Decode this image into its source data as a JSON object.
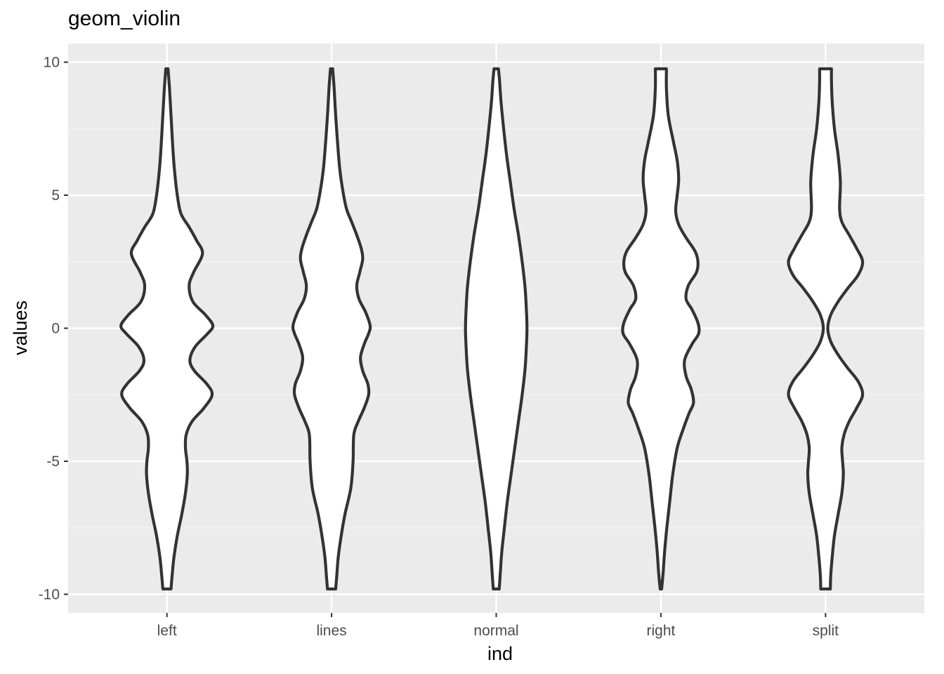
{
  "chart_data": {
    "type": "violin",
    "title": "geom_violin",
    "xlabel": "ind",
    "ylabel": "values",
    "ylim": [
      -10.7,
      10.7
    ],
    "yticks": [
      -10,
      -5,
      0,
      5,
      10
    ],
    "ytick_labels": [
      "-10",
      "-5",
      "0",
      "5",
      "10"
    ],
    "categories": [
      "left",
      "lines",
      "normal",
      "right",
      "split"
    ],
    "grid": true,
    "colors": {
      "panel": "#EBEBEB",
      "grid_major": "#FFFFFF",
      "grid_minor": "#F5F5F5",
      "violin_fill": "#FFFFFF",
      "violin_outline": "#333333",
      "tick_label": "#4D4D4D"
    },
    "violins": [
      {
        "name": "left",
        "profile": [
          [
            -9.8,
            0.055
          ],
          [
            -9.3,
            0.07
          ],
          [
            -8.6,
            0.095
          ],
          [
            -7.8,
            0.14
          ],
          [
            -7,
            0.2
          ],
          [
            -6.2,
            0.25
          ],
          [
            -5.5,
            0.275
          ],
          [
            -5,
            0.27
          ],
          [
            -4.5,
            0.25
          ],
          [
            -4,
            0.26
          ],
          [
            -3.5,
            0.34
          ],
          [
            -3,
            0.5
          ],
          [
            -2.5,
            0.61
          ],
          [
            -2.1,
            0.54
          ],
          [
            -1.6,
            0.37
          ],
          [
            -1.2,
            0.31
          ],
          [
            -0.7,
            0.38
          ],
          [
            -0.2,
            0.55
          ],
          [
            0.1,
            0.62
          ],
          [
            0.5,
            0.52
          ],
          [
            1,
            0.35
          ],
          [
            1.6,
            0.3
          ],
          [
            2.1,
            0.36
          ],
          [
            2.8,
            0.48
          ],
          [
            3.3,
            0.4
          ],
          [
            3.8,
            0.3
          ],
          [
            4.3,
            0.19
          ],
          [
            5,
            0.14
          ],
          [
            6,
            0.1
          ],
          [
            7,
            0.075
          ],
          [
            8,
            0.055
          ],
          [
            9,
            0.035
          ],
          [
            9.75,
            0.015
          ]
        ]
      },
      {
        "name": "lines",
        "profile": [
          [
            -9.8,
            0.055
          ],
          [
            -9.3,
            0.07
          ],
          [
            -8.6,
            0.09
          ],
          [
            -7.8,
            0.13
          ],
          [
            -7,
            0.18
          ],
          [
            -6,
            0.26
          ],
          [
            -5,
            0.29
          ],
          [
            -4,
            0.3
          ],
          [
            -3.5,
            0.36
          ],
          [
            -3,
            0.44
          ],
          [
            -2.5,
            0.5
          ],
          [
            -2.1,
            0.49
          ],
          [
            -1.6,
            0.42
          ],
          [
            -1.1,
            0.39
          ],
          [
            -0.6,
            0.44
          ],
          [
            -0.2,
            0.5
          ],
          [
            0.1,
            0.52
          ],
          [
            0.6,
            0.46
          ],
          [
            1.1,
            0.37
          ],
          [
            1.6,
            0.34
          ],
          [
            2.1,
            0.38
          ],
          [
            2.6,
            0.42
          ],
          [
            3,
            0.4
          ],
          [
            3.5,
            0.34
          ],
          [
            4,
            0.27
          ],
          [
            4.5,
            0.2
          ],
          [
            5.2,
            0.15
          ],
          [
            6,
            0.11
          ],
          [
            7,
            0.08
          ],
          [
            8,
            0.055
          ],
          [
            9,
            0.035
          ],
          [
            9.75,
            0.015
          ]
        ]
      },
      {
        "name": "normal",
        "profile": [
          [
            -9.8,
            0.04
          ],
          [
            -9.2,
            0.055
          ],
          [
            -8.4,
            0.075
          ],
          [
            -7.5,
            0.11
          ],
          [
            -6.5,
            0.15
          ],
          [
            -5.5,
            0.2
          ],
          [
            -4.5,
            0.25
          ],
          [
            -3.5,
            0.3
          ],
          [
            -2.5,
            0.35
          ],
          [
            -1.5,
            0.39
          ],
          [
            -0.5,
            0.41
          ],
          [
            0,
            0.415
          ],
          [
            0.5,
            0.41
          ],
          [
            1.5,
            0.39
          ],
          [
            2.5,
            0.35
          ],
          [
            3.5,
            0.3
          ],
          [
            4.5,
            0.24
          ],
          [
            5.5,
            0.19
          ],
          [
            6.5,
            0.14
          ],
          [
            7.5,
            0.1
          ],
          [
            8.5,
            0.065
          ],
          [
            9.3,
            0.045
          ],
          [
            9.75,
            0.03
          ]
        ]
      },
      {
        "name": "right",
        "profile": [
          [
            -9.8,
            0.01
          ],
          [
            -9.2,
            0.03
          ],
          [
            -8.4,
            0.05
          ],
          [
            -7.5,
            0.08
          ],
          [
            -6.5,
            0.12
          ],
          [
            -5.5,
            0.16
          ],
          [
            -4.5,
            0.22
          ],
          [
            -3.8,
            0.3
          ],
          [
            -3.2,
            0.38
          ],
          [
            -2.8,
            0.44
          ],
          [
            -2.3,
            0.41
          ],
          [
            -1.8,
            0.34
          ],
          [
            -1.2,
            0.32
          ],
          [
            -0.6,
            0.42
          ],
          [
            -0.2,
            0.51
          ],
          [
            0.2,
            0.5
          ],
          [
            0.7,
            0.42
          ],
          [
            1.1,
            0.34
          ],
          [
            1.6,
            0.37
          ],
          [
            2.1,
            0.48
          ],
          [
            2.5,
            0.5
          ],
          [
            2.9,
            0.46
          ],
          [
            3.4,
            0.34
          ],
          [
            3.9,
            0.24
          ],
          [
            4.4,
            0.2
          ],
          [
            5,
            0.22
          ],
          [
            5.6,
            0.24
          ],
          [
            6.3,
            0.22
          ],
          [
            7,
            0.17
          ],
          [
            8,
            0.1
          ],
          [
            9,
            0.075
          ],
          [
            9.75,
            0.075
          ]
        ]
      },
      {
        "name": "split",
        "profile": [
          [
            -9.8,
            0.065
          ],
          [
            -9.3,
            0.07
          ],
          [
            -8.6,
            0.09
          ],
          [
            -7.8,
            0.12
          ],
          [
            -7,
            0.17
          ],
          [
            -6.2,
            0.22
          ],
          [
            -5.5,
            0.24
          ],
          [
            -5,
            0.23
          ],
          [
            -4.5,
            0.22
          ],
          [
            -4,
            0.25
          ],
          [
            -3.5,
            0.32
          ],
          [
            -3,
            0.42
          ],
          [
            -2.5,
            0.5
          ],
          [
            -2,
            0.44
          ],
          [
            -1.5,
            0.3
          ],
          [
            -1,
            0.17
          ],
          [
            -0.5,
            0.07
          ],
          [
            0,
            0.03
          ],
          [
            0.5,
            0.07
          ],
          [
            1,
            0.17
          ],
          [
            1.5,
            0.3
          ],
          [
            2,
            0.44
          ],
          [
            2.5,
            0.5
          ],
          [
            3,
            0.42
          ],
          [
            3.5,
            0.32
          ],
          [
            4,
            0.22
          ],
          [
            4.5,
            0.19
          ],
          [
            5.5,
            0.2
          ],
          [
            6.5,
            0.17
          ],
          [
            7.5,
            0.12
          ],
          [
            8.5,
            0.09
          ],
          [
            9.3,
            0.08
          ],
          [
            9.75,
            0.08
          ]
        ]
      }
    ]
  }
}
